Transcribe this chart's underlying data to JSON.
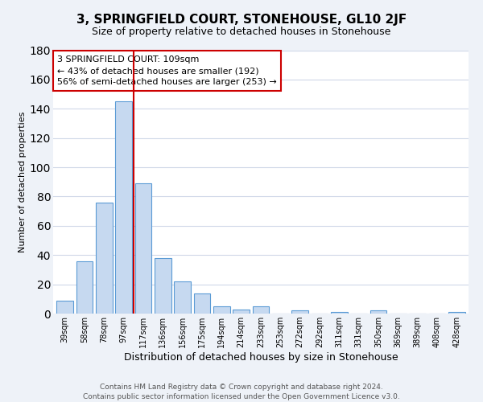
{
  "title": "3, SPRINGFIELD COURT, STONEHOUSE, GL10 2JF",
  "subtitle": "Size of property relative to detached houses in Stonehouse",
  "xlabel": "Distribution of detached houses by size in Stonehouse",
  "ylabel": "Number of detached properties",
  "bar_color": "#c6d9f0",
  "bar_edge_color": "#5b9bd5",
  "redline_color": "#cc0000",
  "background_color": "#eef2f8",
  "plot_bg_color": "#ffffff",
  "grid_color": "#d0d8e8",
  "categories": [
    "39sqm",
    "58sqm",
    "78sqm",
    "97sqm",
    "117sqm",
    "136sqm",
    "156sqm",
    "175sqm",
    "194sqm",
    "214sqm",
    "233sqm",
    "253sqm",
    "272sqm",
    "292sqm",
    "311sqm",
    "331sqm",
    "350sqm",
    "369sqm",
    "389sqm",
    "408sqm",
    "428sqm"
  ],
  "values": [
    9,
    36,
    76,
    145,
    89,
    38,
    22,
    14,
    5,
    3,
    5,
    0,
    2,
    0,
    1,
    0,
    2,
    0,
    0,
    0,
    1
  ],
  "ylim": [
    0,
    180
  ],
  "yticks": [
    0,
    20,
    40,
    60,
    80,
    100,
    120,
    140,
    160,
    180
  ],
  "redline_x": 3.5,
  "annotation_title": "3 SPRINGFIELD COURT: 109sqm",
  "annotation_line1": "← 43% of detached houses are smaller (192)",
  "annotation_line2": "56% of semi-detached houses are larger (253) →",
  "footer1": "Contains HM Land Registry data © Crown copyright and database right 2024.",
  "footer2": "Contains public sector information licensed under the Open Government Licence v3.0.",
  "title_fontsize": 11,
  "subtitle_fontsize": 9,
  "xlabel_fontsize": 9,
  "ylabel_fontsize": 8,
  "tick_fontsize": 7,
  "annotation_fontsize": 8,
  "footer_fontsize": 6.5
}
